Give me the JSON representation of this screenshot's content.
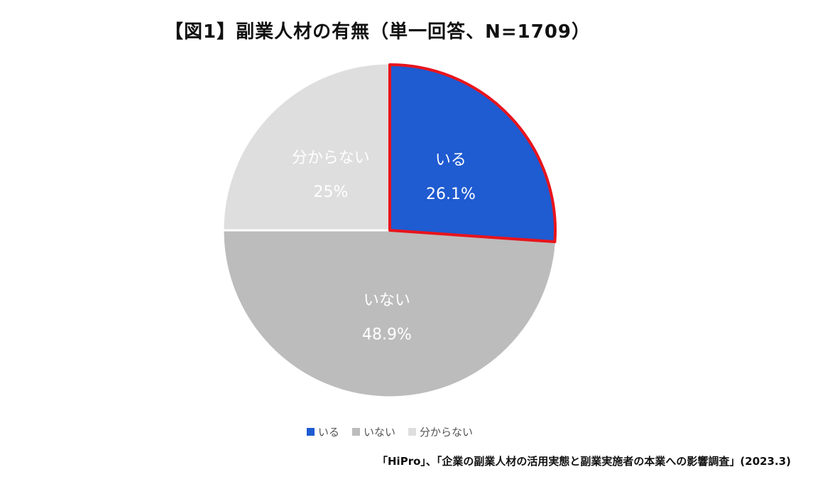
{
  "title": "【図1】副業人材の有無（単一回答、N=1709）",
  "source": "「HiPro」、「企業の副業人材の活用実態と副業実施者の本業への影響調査」(2023.3)",
  "chart_data": {
    "type": "pie",
    "title": "【図1】副業人材の有無（単一回答、N=1709）",
    "slices": [
      {
        "label": "いる",
        "value": 26.1,
        "value_label": "26.1%",
        "color": "#1f5bd1",
        "highlight": true
      },
      {
        "label": "いない",
        "value": 48.9,
        "value_label": "48.9%",
        "color": "#bcbcbc"
      },
      {
        "label": "分からない",
        "value": 25,
        "value_label": "25%",
        "color": "#dedede"
      }
    ],
    "start": "12 o'clock",
    "direction": "clockwise",
    "legend_position": "bottom",
    "highlight_color": "#e8141c"
  }
}
